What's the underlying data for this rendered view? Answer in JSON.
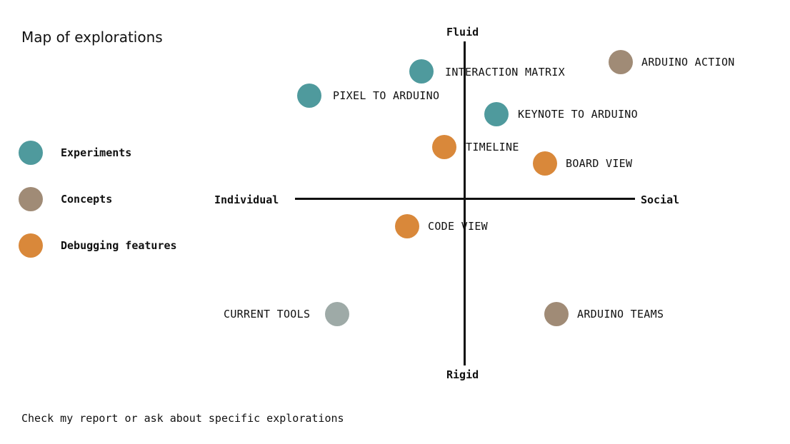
{
  "title": "Map of explorations",
  "legend": [
    {
      "label": "Experiments",
      "color": "#4f9a9d"
    },
    {
      "label": "Concepts",
      "color": "#a08b76"
    },
    {
      "label": "Debugging features",
      "color": "#d9883a"
    }
  ],
  "axes": {
    "top": "Fluid",
    "bottom": "Rigid",
    "left": "Individual",
    "right": "Social"
  },
  "points": [
    {
      "label": "INTERACTION MATRIX",
      "category": "Experiments",
      "color": "#4f9a9d"
    },
    {
      "label": "ARDUINO ACTION",
      "category": "Concepts",
      "color": "#a08b76"
    },
    {
      "label": "PIXEL TO ARDUINO",
      "category": "Experiments",
      "color": "#4f9a9d"
    },
    {
      "label": "KEYNOTE TO ARDUINO",
      "category": "Experiments",
      "color": "#4f9a9d"
    },
    {
      "label": "TIMELINE",
      "category": "Debugging features",
      "color": "#d9883a"
    },
    {
      "label": "BOARD VIEW",
      "category": "Debugging features",
      "color": "#d9883a"
    },
    {
      "label": "CODE VIEW",
      "category": "Debugging features",
      "color": "#d9883a"
    },
    {
      "label": "CURRENT TOOLS",
      "color": "#9eaaa7"
    },
    {
      "label": "ARDUINO TEAMS",
      "category": "Concepts",
      "color": "#a08b76"
    }
  ],
  "footer": "Check my report or ask about specific explorations"
}
